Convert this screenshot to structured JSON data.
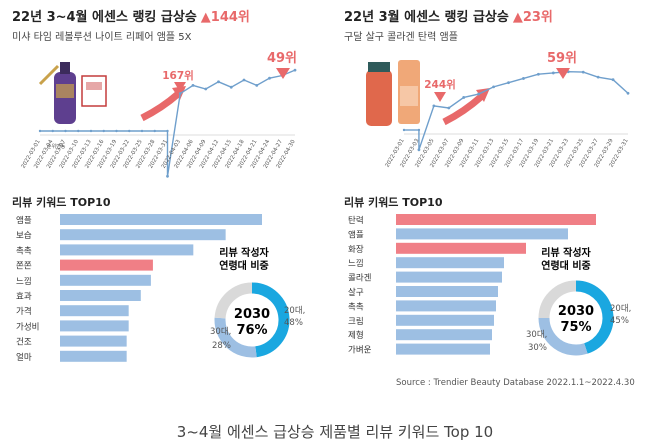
{
  "panels": [
    {
      "title": "22년 3~4월 에센스 랭킹 급상승",
      "highlight": "▲144위",
      "subtitle": "미샤 타임 레볼루션 나이트 리페어 앰플 5X",
      "rank_start_label": "167위",
      "rank_end_label": "49위",
      "yaxis_label": "순위변동",
      "keyword_title": "리뷰 키워드 TOP10",
      "donut": {
        "title_line1": "리뷰 작성자",
        "title_line2": "연령대 비중",
        "center_line1": "2030",
        "center_line2": "76%",
        "right_label_1": "20대,",
        "right_label_2": "48%",
        "left_label_1": "30대,",
        "left_label_2": "28%"
      }
    },
    {
      "title": "22년 3월 에센스 랭킹 급상승",
      "highlight": "▲23위",
      "subtitle": "구달 살구 콜라겐 탄력 앰플",
      "rank_start_label": "244위",
      "rank_end_label": "59위",
      "yaxis_label": "",
      "keyword_title": "리뷰 키워드 TOP10",
      "donut": {
        "title_line1": "리뷰 작성자",
        "title_line2": "연령대 비중",
        "center_line1": "2030",
        "center_line2": "75%",
        "right_label_1": "20대,",
        "right_label_2": "45%",
        "left_label_1": "30대,",
        "left_label_2": "30%"
      }
    }
  ],
  "source": "Source : Trendier Beauty Database 2022.1.1~2022.4.30",
  "caption": "3~4월 에센스 급상승 제품별 리뷰 키워드 Top 10",
  "colors": {
    "bar": "#9dbfe3",
    "bar_highlight": "#f07f86",
    "line": "#6f9fcc",
    "donut_main": "#1aa7e0",
    "donut_second": "#9dbfe3",
    "donut_rest": "#d9d9d9",
    "arrow": "#e8696a"
  },
  "chart_data": [
    {
      "type": "line",
      "title": "22년 3~4월 에센스 랭킹 급상승",
      "x": [
        "2022-03-01",
        "2022-03-04",
        "2022-03-07",
        "2022-03-10",
        "2022-03-13",
        "2022-03-16",
        "2022-03-19",
        "2022-03-22",
        "2022-03-25",
        "2022-03-28",
        "2022-03-31",
        "2022-04-03",
        "2022-04-06",
        "2022-04-09",
        "2022-04-12",
        "2022-04-15",
        "2022-04-18",
        "2022-04-21",
        "2022-04-24",
        "2022-04-27",
        "2022-04-30"
      ],
      "y": [
        null,
        null,
        null,
        null,
        null,
        null,
        null,
        null,
        null,
        null,
        167,
        75,
        66,
        70,
        62,
        68,
        60,
        66,
        58,
        55,
        49
      ],
      "annotations": [
        "167위",
        "49위"
      ],
      "ylabel": "순위변동"
    },
    {
      "type": "line",
      "title": "22년 3월 에센스 랭킹 급상승",
      "x": [
        "2022-03-01",
        "2022-03-03",
        "2022-03-05",
        "2022-03-07",
        "2022-03-09",
        "2022-03-11",
        "2022-03-13",
        "2022-03-15",
        "2022-03-17",
        "2022-03-19",
        "2022-03-21",
        "2022-03-23",
        "2022-03-25",
        "2022-03-27",
        "2022-03-29",
        "2022-03-31"
      ],
      "y": [
        null,
        244,
        140,
        145,
        120,
        112,
        95,
        85,
        75,
        65,
        62,
        59,
        60,
        72,
        78,
        110
      ],
      "annotations": [
        "244위",
        "59위"
      ]
    },
    {
      "type": "bar",
      "title": "리뷰 키워드 TOP10",
      "categories": [
        "앰플",
        "보습",
        "촉촉",
        "쫀쫀",
        "느낌",
        "효과",
        "가격",
        "가성비",
        "건조",
        "얼마"
      ],
      "values": [
        100,
        82,
        66,
        46,
        45,
        40,
        34,
        34,
        33,
        33
      ],
      "highlight": [
        "쫀쫀"
      ]
    },
    {
      "type": "bar",
      "title": "리뷰 키워드 TOP10",
      "categories": [
        "탄력",
        "앰플",
        "화장",
        "느낌",
        "콜라겐",
        "살구",
        "촉촉",
        "크림",
        "제형",
        "가벼운"
      ],
      "values": [
        100,
        86,
        65,
        54,
        53,
        51,
        50,
        49,
        48,
        47
      ],
      "highlight": [
        "탄력",
        "화장"
      ]
    },
    {
      "type": "pie",
      "categories": [
        "20대",
        "30대",
        "기타"
      ],
      "values": [
        48,
        28,
        24
      ]
    },
    {
      "type": "pie",
      "categories": [
        "20대",
        "30대",
        "기타"
      ],
      "values": [
        45,
        30,
        25
      ]
    }
  ]
}
